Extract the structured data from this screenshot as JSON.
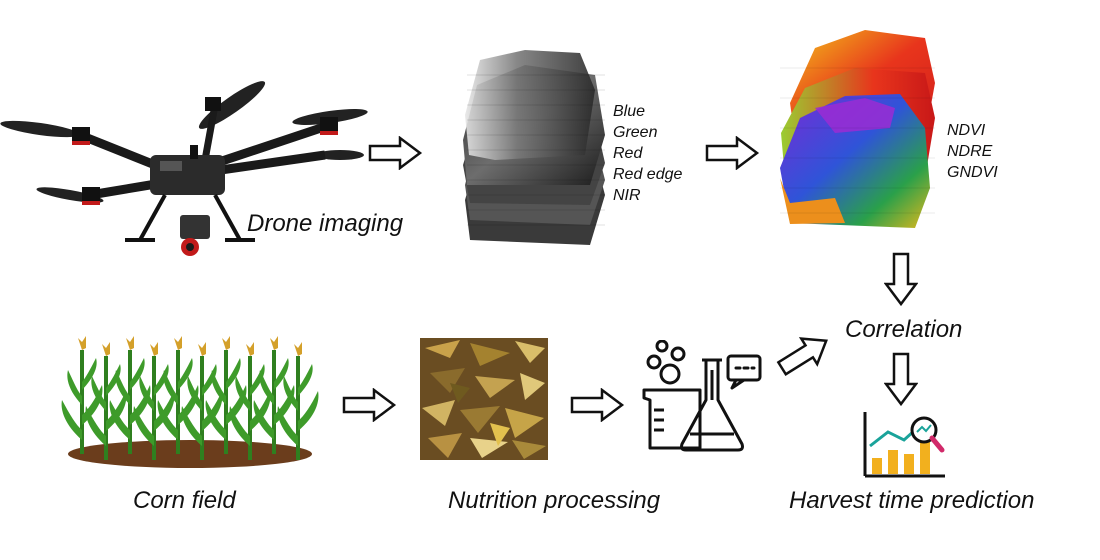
{
  "captions": {
    "drone": "Drone imaging",
    "corn": "Corn field",
    "nutrition": "Nutrition processing",
    "correlation": "Correlation",
    "harvest": "Harvest time prediction"
  },
  "bands": [
    "Blue",
    "Green",
    "Red",
    "Red edge",
    "NIR"
  ],
  "indices": [
    "NDVI",
    "NDRE",
    "GNDVI"
  ],
  "colors": {
    "arrow_stroke": "#111111",
    "corn_leaf": "#3e9b2a",
    "soil": "#6b3d1c",
    "chart_bar": "#f2b01e",
    "chart_line": "#1aa39a",
    "lab_stroke": "#111111"
  },
  "icons": [
    "drone-icon",
    "grayscale-band-stack-icon",
    "vegetation-index-stack-icon",
    "corn-field-icon",
    "silage-icon",
    "lab-flask-icon",
    "harvest-chart-icon"
  ]
}
